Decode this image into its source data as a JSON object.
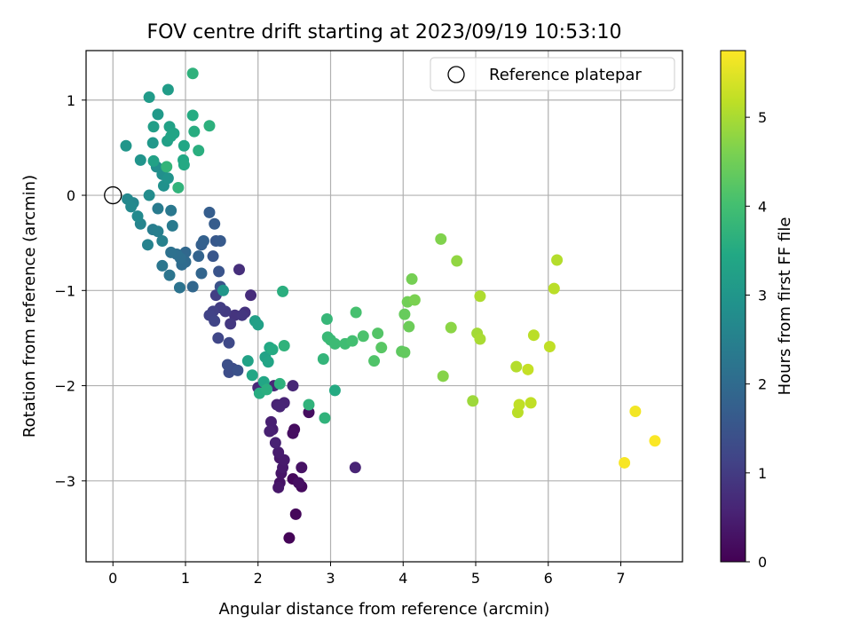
{
  "chart_data": {
    "type": "scatter",
    "title": "FOV centre drift starting at 2023/09/19 10:53:10",
    "xlabel": "Angular distance from reference (arcmin)",
    "ylabel": "Rotation from reference (arcmin)",
    "xlim": [
      -0.37,
      7.85
    ],
    "ylim": [
      -3.85,
      1.52
    ],
    "xticks": [
      0,
      1,
      2,
      3,
      4,
      5,
      6,
      7
    ],
    "yticks": [
      1,
      0,
      -1,
      -2,
      -3
    ],
    "grid": true,
    "legend": {
      "placement": "top-right",
      "entries": [
        "Reference platepar"
      ]
    },
    "reference_point": {
      "x": 0,
      "y": 0
    },
    "colorbar": {
      "label": "Hours from first FF file",
      "range": [
        0,
        5.75
      ],
      "ticks": [
        0,
        1,
        2,
        3,
        4,
        5
      ],
      "colormap": "viridis"
    },
    "points": [
      [
        2.43,
        -3.6,
        0.05
      ],
      [
        2.52,
        -3.35,
        0.1
      ],
      [
        2.48,
        -2.98,
        0.12
      ],
      [
        2.6,
        -3.06,
        0.15
      ],
      [
        2.5,
        -2.46,
        0.18
      ],
      [
        2.7,
        -2.28,
        0.2
      ],
      [
        2.48,
        -2.5,
        0.22
      ],
      [
        2.56,
        -3.02,
        0.25
      ],
      [
        2.6,
        -2.86,
        0.28
      ],
      [
        2.3,
        -3.02,
        0.3
      ],
      [
        2.32,
        -2.92,
        0.33
      ],
      [
        2.28,
        -3.07,
        0.36
      ],
      [
        2.3,
        -2.76,
        0.38
      ],
      [
        2.34,
        -2.86,
        0.4
      ],
      [
        2.36,
        -2.78,
        0.42
      ],
      [
        2.28,
        -2.7,
        0.45
      ],
      [
        2.2,
        -2.46,
        0.48
      ],
      [
        2.18,
        -2.38,
        0.5
      ],
      [
        2.16,
        -2.48,
        0.52
      ],
      [
        2.24,
        -2.6,
        0.54
      ],
      [
        2.26,
        -2.2,
        0.56
      ],
      [
        2.36,
        -2.18,
        0.58
      ],
      [
        2.3,
        -2.22,
        0.6
      ],
      [
        2.48,
        -2.0,
        0.62
      ],
      [
        3.34,
        -2.86,
        0.58
      ],
      [
        2.22,
        -2.0,
        0.64
      ],
      [
        2.0,
        -2.02,
        0.66
      ],
      [
        1.9,
        -1.05,
        0.72
      ],
      [
        1.74,
        -0.78,
        0.78
      ],
      [
        1.82,
        -1.23,
        0.82
      ],
      [
        1.68,
        -1.26,
        0.86
      ],
      [
        1.78,
        -1.26,
        0.9
      ],
      [
        1.62,
        -1.35,
        0.94
      ],
      [
        1.55,
        -1.22,
        0.98
      ],
      [
        1.48,
        -1.18,
        1.02
      ],
      [
        1.42,
        -1.05,
        1.06
      ],
      [
        1.38,
        -1.22,
        1.1
      ],
      [
        1.33,
        -1.26,
        1.14
      ],
      [
        1.4,
        -1.32,
        1.18
      ],
      [
        1.45,
        -1.5,
        1.22
      ],
      [
        1.6,
        -1.55,
        1.26
      ],
      [
        1.65,
        -1.82,
        1.3
      ],
      [
        1.6,
        -1.86,
        1.34
      ],
      [
        1.58,
        -1.78,
        1.38
      ],
      [
        1.72,
        -1.84,
        1.42
      ],
      [
        1.48,
        -0.96,
        1.46
      ],
      [
        1.46,
        -0.8,
        1.5
      ],
      [
        1.38,
        -0.64,
        1.54
      ],
      [
        1.42,
        -0.48,
        1.58
      ],
      [
        1.48,
        -0.48,
        1.62
      ],
      [
        1.4,
        -0.3,
        1.66
      ],
      [
        1.33,
        -0.18,
        1.7
      ],
      [
        1.22,
        -0.52,
        1.74
      ],
      [
        1.25,
        -0.48,
        1.78
      ],
      [
        1.18,
        -0.64,
        1.82
      ],
      [
        1.22,
        -0.82,
        1.86
      ],
      [
        1.1,
        -0.96,
        1.9
      ],
      [
        1.0,
        -0.6,
        1.94
      ],
      [
        1.0,
        -0.7,
        1.98
      ],
      [
        0.95,
        -0.73,
        2.02
      ],
      [
        0.93,
        -0.66,
        2.06
      ],
      [
        0.88,
        -0.62,
        2.1
      ],
      [
        0.8,
        -0.6,
        2.14
      ],
      [
        0.92,
        -0.97,
        2.18
      ],
      [
        0.78,
        -0.84,
        2.22
      ],
      [
        0.68,
        -0.74,
        2.26
      ],
      [
        0.8,
        -0.16,
        2.3
      ],
      [
        0.82,
        -0.32,
        2.34
      ],
      [
        0.62,
        -0.14,
        2.38
      ],
      [
        0.55,
        -0.36,
        2.42
      ],
      [
        0.62,
        -0.38,
        2.46
      ],
      [
        0.68,
        -0.48,
        2.5
      ],
      [
        0.48,
        -0.52,
        2.54
      ],
      [
        0.38,
        -0.3,
        2.58
      ],
      [
        0.28,
        -0.08,
        2.62
      ],
      [
        0.2,
        -0.04,
        2.66
      ],
      [
        0.25,
        -0.12,
        2.7
      ],
      [
        0.34,
        -0.22,
        2.72
      ],
      [
        0.5,
        0.0,
        2.76
      ],
      [
        0.6,
        0.3,
        2.8
      ],
      [
        0.68,
        0.22,
        2.84
      ],
      [
        0.7,
        0.1,
        2.88
      ],
      [
        0.76,
        0.18,
        2.92
      ],
      [
        0.38,
        0.37,
        2.96
      ],
      [
        0.18,
        0.52,
        3.0
      ],
      [
        0.55,
        0.55,
        3.04
      ],
      [
        0.62,
        0.85,
        3.08
      ],
      [
        0.5,
        1.03,
        3.12
      ],
      [
        0.76,
        1.11,
        3.16
      ],
      [
        0.56,
        0.72,
        3.2
      ],
      [
        0.75,
        0.57,
        3.24
      ],
      [
        0.78,
        0.72,
        3.28
      ],
      [
        0.8,
        0.62,
        3.32
      ],
      [
        0.84,
        0.65,
        3.36
      ],
      [
        0.98,
        0.52,
        3.4
      ],
      [
        0.97,
        0.37,
        3.44
      ],
      [
        0.98,
        0.32,
        3.48
      ],
      [
        1.1,
        0.84,
        3.52
      ],
      [
        1.12,
        0.67,
        3.56
      ],
      [
        1.18,
        0.47,
        3.6
      ],
      [
        1.33,
        0.73,
        3.64
      ],
      [
        1.1,
        1.28,
        3.68
      ],
      [
        0.9,
        0.08,
        3.72
      ],
      [
        0.74,
        0.3,
        3.76
      ],
      [
        0.56,
        0.36,
        3.28
      ],
      [
        1.52,
        -1.0,
        3.0
      ],
      [
        1.86,
        -1.74,
        3.3
      ],
      [
        1.92,
        -1.89,
        3.4
      ],
      [
        1.96,
        -1.32,
        3.2
      ],
      [
        2.0,
        -1.36,
        3.25
      ],
      [
        2.1,
        -1.7,
        3.3
      ],
      [
        2.14,
        -1.75,
        3.35
      ],
      [
        2.08,
        -1.96,
        3.4
      ],
      [
        2.16,
        -1.6,
        3.45
      ],
      [
        2.2,
        -1.62,
        3.5
      ],
      [
        2.02,
        -2.08,
        3.55
      ],
      [
        2.12,
        -2.04,
        3.6
      ],
      [
        2.3,
        -1.98,
        3.65
      ],
      [
        2.36,
        -1.58,
        3.7
      ],
      [
        2.34,
        -1.01,
        3.6
      ],
      [
        2.7,
        -2.2,
        3.7
      ],
      [
        2.9,
        -1.72,
        3.75
      ],
      [
        2.95,
        -1.3,
        3.8
      ],
      [
        2.96,
        -1.49,
        3.85
      ],
      [
        3.0,
        -1.52,
        3.88
      ],
      [
        3.06,
        -1.56,
        3.9
      ],
      [
        3.2,
        -1.56,
        3.95
      ],
      [
        3.3,
        -1.53,
        4.0
      ],
      [
        3.35,
        -1.23,
        4.05
      ],
      [
        3.45,
        -1.48,
        4.1
      ],
      [
        3.6,
        -1.74,
        4.15
      ],
      [
        3.65,
        -1.45,
        4.2
      ],
      [
        3.7,
        -1.6,
        4.25
      ],
      [
        3.98,
        -1.64,
        4.3
      ],
      [
        4.02,
        -1.65,
        4.35
      ],
      [
        4.02,
        -1.25,
        4.4
      ],
      [
        4.08,
        -1.38,
        4.45
      ],
      [
        4.06,
        -1.12,
        4.5
      ],
      [
        4.12,
        -0.88,
        4.55
      ],
      [
        4.16,
        -1.1,
        4.6
      ],
      [
        4.52,
        -0.46,
        4.65
      ],
      [
        4.55,
        -1.9,
        4.7
      ],
      [
        4.66,
        -1.39,
        4.75
      ],
      [
        4.74,
        -0.69,
        4.8
      ],
      [
        4.96,
        -2.16,
        4.9
      ],
      [
        5.02,
        -1.45,
        4.95
      ],
      [
        5.06,
        -1.51,
        5.0
      ],
      [
        5.06,
        -1.06,
        5.05
      ],
      [
        5.56,
        -1.8,
        5.1
      ],
      [
        5.58,
        -2.28,
        5.15
      ],
      [
        5.6,
        -2.2,
        5.2
      ],
      [
        5.72,
        -1.83,
        5.25
      ],
      [
        5.76,
        -2.18,
        5.2
      ],
      [
        5.8,
        -1.47,
        5.15
      ],
      [
        6.02,
        -1.59,
        5.2
      ],
      [
        6.08,
        -0.98,
        5.15
      ],
      [
        6.12,
        -0.68,
        5.1
      ],
      [
        2.92,
        -2.34,
        3.7
      ],
      [
        3.06,
        -2.05,
        3.5
      ],
      [
        7.05,
        -2.81,
        5.7
      ],
      [
        7.2,
        -2.27,
        5.65
      ],
      [
        7.47,
        -2.58,
        5.72
      ]
    ]
  }
}
